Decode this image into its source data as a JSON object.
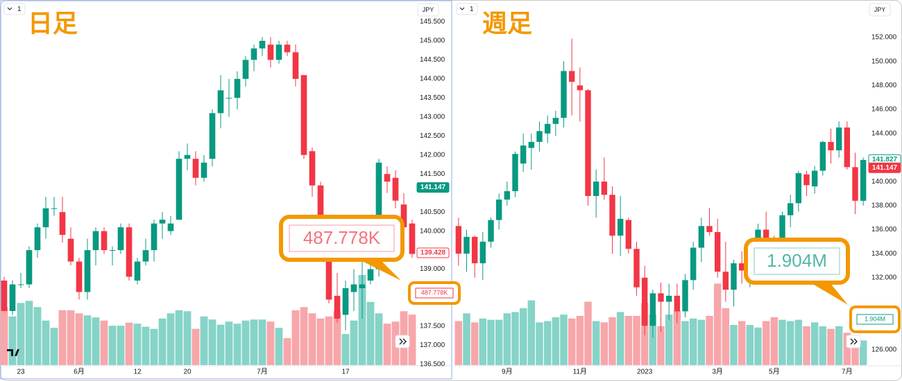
{
  "chart_data": [
    {
      "type": "candlestick",
      "title": "日足",
      "interval": "1",
      "currency": "JPY",
      "up_color": "#089981",
      "down_color": "#f23645",
      "volume_up_color": "#86d3c7",
      "volume_down_color": "#f7a6aa",
      "categories": [
        null,
        null,
        "23",
        null,
        null,
        null,
        null,
        null,
        null,
        "6月",
        null,
        null,
        null,
        null,
        null,
        null,
        "12",
        null,
        null,
        null,
        null,
        null,
        "20",
        null,
        null,
        null,
        null,
        null,
        null,
        null,
        null,
        "7月",
        null,
        null,
        null,
        null,
        null,
        null,
        null,
        null,
        null,
        "17",
        null,
        null,
        null,
        null,
        null,
        null,
        null,
        null
      ],
      "open": [
        138.7,
        137.9,
        138.6,
        138.6,
        139.5,
        140.1,
        140.6,
        140.5,
        139.8,
        139.2,
        138.4,
        139.5,
        140.0,
        139.5,
        139.5,
        140.1,
        138.7,
        139.2,
        139.5,
        140.2,
        140.0,
        140.3,
        141.9,
        141.9,
        141.4,
        141.9,
        143.1,
        143.5,
        143.5,
        144.0,
        144.5,
        144.8,
        144.9,
        144.5,
        144.9,
        144.7,
        144.1,
        142.1,
        141.2,
        139.3,
        138.3,
        137.8,
        138.4,
        138.5,
        138.7,
        139.0,
        141.5,
        141.4,
        140.7,
        140.2
      ],
      "high": [
        138.8,
        138.7,
        138.9,
        139.6,
        140.2,
        140.9,
        140.9,
        140.9,
        140.1,
        139.3,
        139.8,
        140.1,
        140.1,
        139.6,
        140.2,
        140.2,
        139.3,
        139.8,
        140.3,
        140.5,
        140.4,
        142.1,
        142.3,
        142.1,
        142.0,
        143.2,
        144.1,
        144.0,
        144.2,
        144.6,
        144.9,
        145.1,
        145.1,
        145.0,
        145.0,
        144.9,
        144.1,
        142.2,
        141.3,
        139.5,
        138.9,
        138.7,
        139.0,
        139.5,
        139.8,
        141.9,
        141.7,
        141.6,
        141.0,
        140.3
      ],
      "low": [
        137.9,
        137.8,
        138.5,
        138.5,
        139.3,
        139.8,
        140.4,
        139.7,
        139.1,
        138.2,
        138.2,
        139.1,
        139.4,
        139.1,
        139.4,
        138.7,
        138.6,
        139.1,
        139.2,
        139.8,
        139.9,
        140.3,
        141.6,
        141.2,
        141.3,
        141.7,
        142.7,
        143.0,
        143.2,
        143.8,
        144.2,
        144.6,
        144.3,
        144.4,
        144.6,
        143.8,
        141.9,
        140.9,
        139.2,
        138.1,
        137.6,
        137.4,
        137.9,
        137.7,
        138.6,
        138.8,
        141.0,
        140.6,
        139.9,
        139.3
      ],
      "close": [
        137.9,
        138.6,
        138.6,
        139.5,
        140.1,
        140.6,
        140.6,
        139.9,
        139.2,
        138.4,
        139.5,
        140.0,
        139.5,
        139.5,
        140.1,
        138.8,
        139.2,
        139.5,
        140.2,
        140.3,
        140.2,
        141.9,
        142.0,
        141.4,
        141.8,
        143.1,
        143.7,
        143.5,
        144.0,
        144.5,
        144.8,
        145.0,
        144.5,
        144.9,
        144.7,
        144.0,
        142.0,
        141.2,
        139.4,
        138.2,
        137.7,
        138.5,
        138.6,
        138.6,
        139.0,
        141.8,
        141.3,
        140.8,
        140.1,
        139.4
      ],
      "volume": [
        560000,
        470000,
        600000,
        620000,
        560000,
        430000,
        360000,
        530000,
        530000,
        500000,
        480000,
        460000,
        430000,
        380000,
        380000,
        410000,
        400000,
        370000,
        350000,
        450000,
        500000,
        530000,
        520000,
        350000,
        470000,
        440000,
        390000,
        420000,
        400000,
        430000,
        440000,
        440000,
        420000,
        360000,
        260000,
        530000,
        560000,
        500000,
        450000,
        470000,
        520000,
        300000,
        430000,
        870000,
        610000,
        500000,
        400000,
        420000,
        520000,
        487778
      ],
      "volume_label": "487.778K",
      "vlim": [
        0,
        3500000
      ],
      "ylim": [
        136.48,
        146.0
      ],
      "yticks": [
        {
          "value": 145.5,
          "label": "145.500"
        },
        {
          "value": 145,
          "label": "145.000"
        },
        {
          "value": 144.5,
          "label": "144.500"
        },
        {
          "value": 144,
          "label": "144.000"
        },
        {
          "value": 143.5,
          "label": "143.500"
        },
        {
          "value": 143,
          "label": "143.000"
        },
        {
          "value": 142.5,
          "label": "142.500"
        },
        {
          "value": 142,
          "label": "142.000"
        },
        {
          "value": 141.5,
          "label": "141.500"
        },
        {
          "value": 140.5,
          "label": "140.500"
        },
        {
          "value": 140,
          "label": "140.000"
        },
        {
          "value": 139,
          "label": "139.000"
        },
        {
          "value": 137.5,
          "label": "137.500"
        },
        {
          "value": 137,
          "label": "137.000"
        },
        {
          "value": 136.5,
          "label": "136.500"
        }
      ],
      "price_labels": [
        {
          "value": 141.147,
          "label": "141.147",
          "color": "#089981",
          "style": "filled"
        },
        {
          "value": 139.428,
          "label": "139.428",
          "color": "#f23645",
          "style": "outline"
        }
      ]
    },
    {
      "type": "candlestick",
      "title": "週足",
      "interval": "1",
      "currency": "JPY",
      "up_color": "#089981",
      "down_color": "#f23645",
      "volume_up_color": "#86d3c7",
      "volume_down_color": "#f7a6aa",
      "categories": [
        null,
        null,
        null,
        null,
        null,
        null,
        "9月",
        null,
        null,
        null,
        null,
        null,
        null,
        null,
        null,
        "11月",
        null,
        null,
        null,
        null,
        null,
        null,
        null,
        "2023",
        null,
        null,
        null,
        null,
        null,
        null,
        null,
        null,
        "3月",
        null,
        null,
        null,
        null,
        null,
        null,
        "5月",
        null,
        null,
        null,
        null,
        null,
        null,
        null,
        null,
        "7月",
        null,
        null
      ],
      "open": [
        136.3,
        134.0,
        135.4,
        133.2,
        135.0,
        136.8,
        138.5,
        139.2,
        141.5,
        142.8,
        143.3,
        144.0,
        144.8,
        145.3,
        149.2,
        148.0,
        147.6,
        138.8,
        140.0,
        138.9,
        135.5,
        136.8,
        134.4,
        132.0,
        128.0,
        130.7,
        130.0,
        130.5,
        129.2,
        131.8,
        134.5,
        136.3,
        135.8,
        132.5,
        131.0,
        133.2,
        132.6,
        134.2,
        136.0,
        135.0,
        134.3,
        137.2,
        138.2,
        140.6,
        139.6,
        140.9,
        143.3,
        142.6,
        144.5,
        141.2,
        138.4
      ],
      "high": [
        137.0,
        136.0,
        135.5,
        135.8,
        137.0,
        139.0,
        140.0,
        142.5,
        144.0,
        144.0,
        145.0,
        145.5,
        145.9,
        150.0,
        151.9,
        149.5,
        147.7,
        141.0,
        142.0,
        139.6,
        138.8,
        137.0,
        135.0,
        133.0,
        131.0,
        131.6,
        131.5,
        131.5,
        132.3,
        135.0,
        137.0,
        137.8,
        136.9,
        135.0,
        133.5,
        134.2,
        134.5,
        136.5,
        137.5,
        135.5,
        137.5,
        138.9,
        140.9,
        140.9,
        141.3,
        143.4,
        144.4,
        145.0,
        145.0,
        142.4,
        142.0
      ],
      "low": [
        133.0,
        132.5,
        132.0,
        131.8,
        134.5,
        136.0,
        138.0,
        138.7,
        140.8,
        141.0,
        142.5,
        143.2,
        143.8,
        144.5,
        145.5,
        145.0,
        138.0,
        137.0,
        138.5,
        134.0,
        133.8,
        134.0,
        130.5,
        127.2,
        127.0,
        127.5,
        128.5,
        128.2,
        128.7,
        131.0,
        133.3,
        135.5,
        132.0,
        130.0,
        129.6,
        131.5,
        131.2,
        133.5,
        134.5,
        132.8,
        134.0,
        136.2,
        137.5,
        138.8,
        139.0,
        140.5,
        141.5,
        142.0,
        141.0,
        137.3,
        138.0
      ],
      "close": [
        134.0,
        135.4,
        133.2,
        135.0,
        136.8,
        138.5,
        139.2,
        142.3,
        143.0,
        143.3,
        144.2,
        144.8,
        145.3,
        149.2,
        148.3,
        147.6,
        138.8,
        140.0,
        138.9,
        135.5,
        136.9,
        134.4,
        131.2,
        128.0,
        130.7,
        130.0,
        130.5,
        129.2,
        131.8,
        134.5,
        136.3,
        135.8,
        132.5,
        131.0,
        133.2,
        132.6,
        134.2,
        136.0,
        135.0,
        134.5,
        137.2,
        138.2,
        140.7,
        139.7,
        140.9,
        143.3,
        142.6,
        144.5,
        141.2,
        138.4,
        141.8
      ],
      "volume": [
        3400000,
        4000000,
        3300000,
        3600000,
        3500000,
        3500000,
        4000000,
        4100000,
        4400000,
        5000000,
        3300000,
        3400000,
        3700000,
        3900000,
        3600000,
        3800000,
        4900000,
        3400000,
        3300000,
        3700000,
        4100000,
        3800000,
        3800000,
        4800000,
        3900000,
        3000000,
        3900000,
        4200000,
        3400000,
        3600000,
        3500000,
        3800000,
        6300000,
        4400000,
        3100000,
        3400000,
        3100000,
        2900000,
        3400000,
        3700000,
        3500000,
        3400000,
        3500000,
        3000000,
        3300000,
        3000000,
        2800000,
        3000000,
        2500000,
        1800000,
        1904000
      ],
      "volume_label": "1.904M",
      "vlim": [
        0,
        28000000
      ],
      "ylim": [
        124.73,
        154.88
      ],
      "yticks": [
        {
          "value": 152,
          "label": "152.000"
        },
        {
          "value": 150,
          "label": "150.000"
        },
        {
          "value": 148,
          "label": "148.000"
        },
        {
          "value": 146,
          "label": "146.000"
        },
        {
          "value": 144,
          "label": "144.000"
        },
        {
          "value": 140,
          "label": "140.000"
        },
        {
          "value": 138,
          "label": "138.000"
        },
        {
          "value": 136,
          "label": "136.000"
        },
        {
          "value": 134,
          "label": "134.000"
        },
        {
          "value": 132,
          "label": "132.000"
        },
        {
          "value": 126,
          "label": "126.000"
        }
      ],
      "price_labels": [
        {
          "value": 141.827,
          "label": "141.827",
          "color": "#089981",
          "style": "outline"
        },
        {
          "value": 141.147,
          "label": "141.147",
          "color": "#f23645",
          "style": "filled"
        }
      ]
    }
  ]
}
